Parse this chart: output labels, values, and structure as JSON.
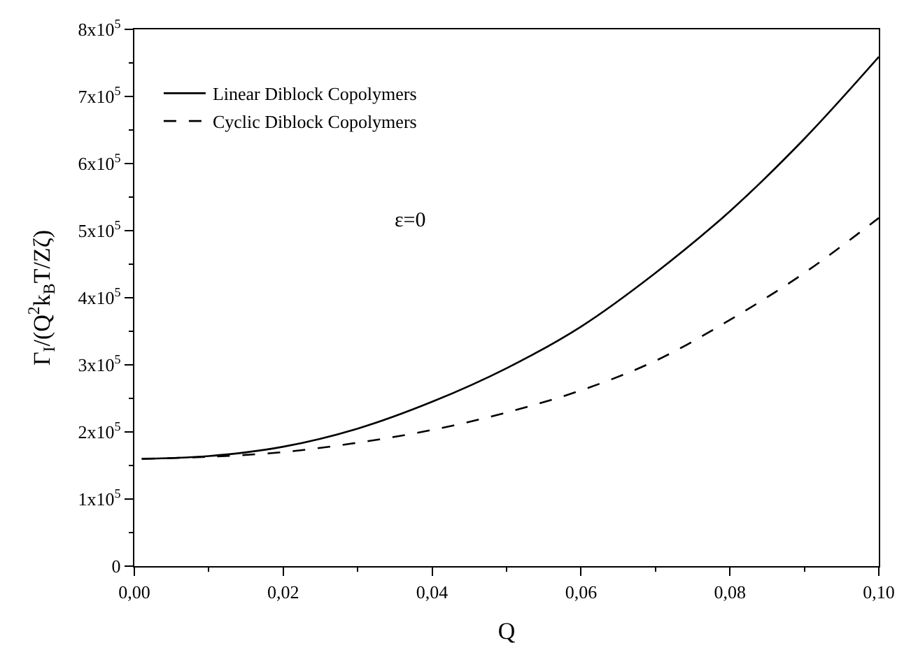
{
  "chart_data": {
    "type": "line",
    "xlabel": "Q",
    "ylabel": "Γ$_{I}$/(Q$^{2}$k$_{B}$T/Zζ)",
    "annotations": [
      "ε=0"
    ],
    "series": [
      {
        "name": "Linear Diblock Copolymers",
        "color": "#000000",
        "line_style": "solid",
        "x": [
          0.001,
          0.01,
          0.02,
          0.03,
          0.04,
          0.05,
          0.06,
          0.07,
          0.08,
          0.09,
          0.1
        ],
        "values": [
          160000,
          164000,
          178000,
          205000,
          245000,
          295000,
          357000,
          437000,
          529000,
          637000,
          759000
        ]
      },
      {
        "name": "Cyclic Diblock Copolymers",
        "color": "#000000",
        "line_style": "dashed",
        "x": [
          0.001,
          0.01,
          0.02,
          0.03,
          0.04,
          0.05,
          0.06,
          0.07,
          0.08,
          0.09,
          0.1
        ],
        "values": [
          160000,
          163000,
          170000,
          184000,
          203000,
          229000,
          262000,
          306000,
          367000,
          437000,
          519000
        ]
      }
    ],
    "xlim": [
      0,
      0.1
    ],
    "xticks": [
      {
        "value": 0,
        "label": "0,00"
      },
      {
        "value": 0.02,
        "label": "0,02"
      },
      {
        "value": 0.04,
        "label": "0,04"
      },
      {
        "value": 0.06,
        "label": "0,06"
      },
      {
        "value": 0.08,
        "label": "0,08"
      },
      {
        "value": 0.1,
        "label": "0,10"
      }
    ],
    "ylim": [
      0,
      800000
    ],
    "yticks": [
      0,
      {
        "value": 100000,
        "label": "1x10$^{5}$"
      },
      {
        "value": 200000,
        "label": "2x10$^{5}$"
      },
      {
        "value": 300000,
        "label": "3x10$^{5}$"
      },
      {
        "value": 400000,
        "label": "4x10$^{5}$"
      },
      {
        "value": 500000,
        "label": "5x10$^{5}$"
      },
      {
        "value": 600000,
        "label": "6x10$^{5}$"
      },
      {
        "value": 700000,
        "label": "7x10$^{5}$"
      },
      {
        "value": 800000,
        "label": "8x10$^{5}$"
      }
    ],
    "legend": "top left"
  }
}
